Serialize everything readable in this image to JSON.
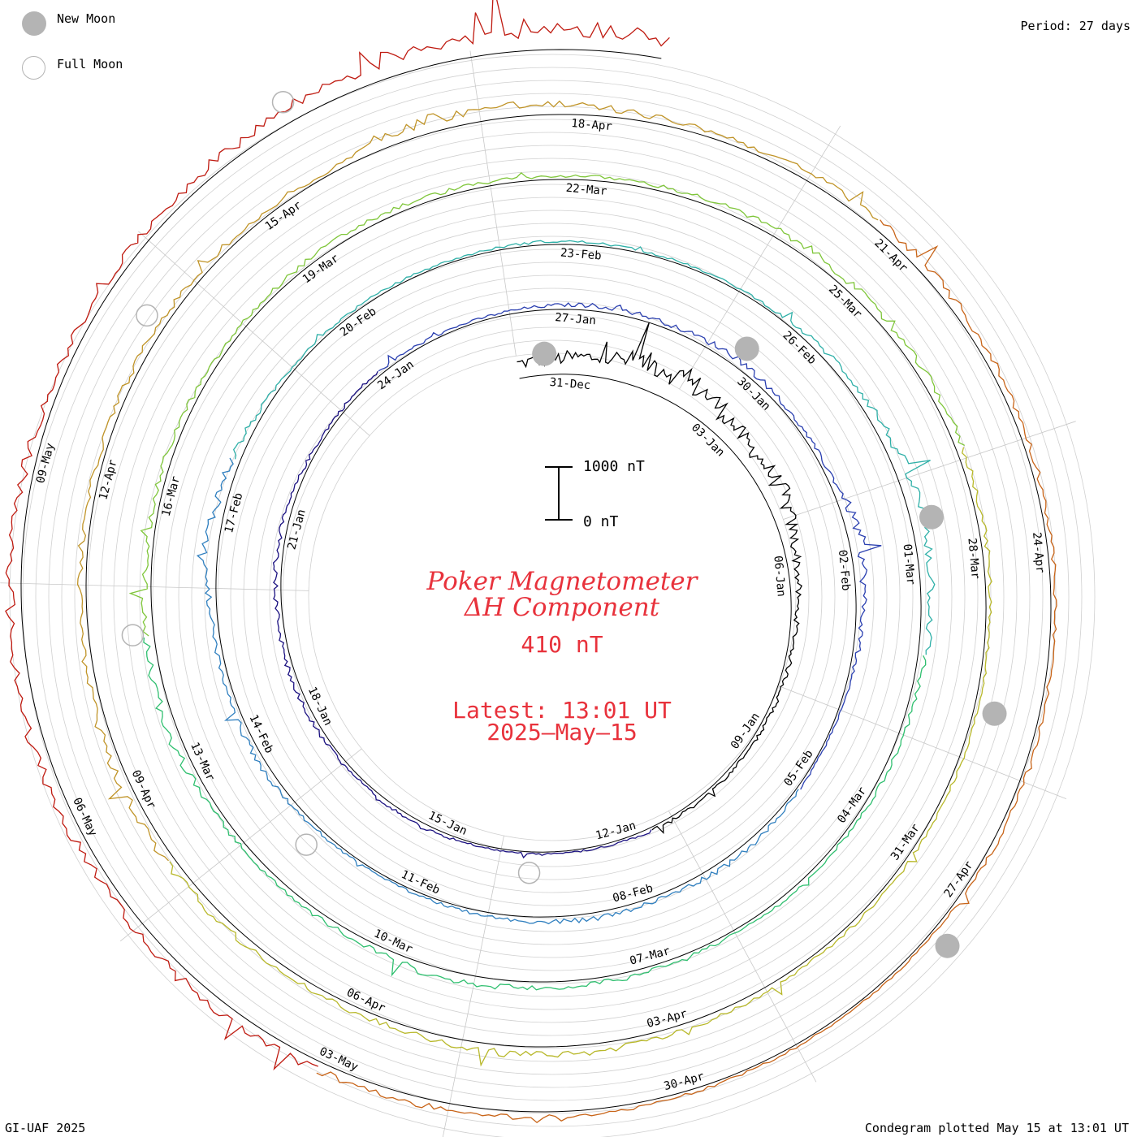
{
  "legend": {
    "new_moon_label": "New Moon",
    "full_moon_label": "Full Moon",
    "new_moon_color": "#b4b4b4",
    "full_moon_color": "#b4b4b4"
  },
  "period_label": "Period: 27 days",
  "footer_left": "GI-UAF 2025",
  "footer_right": "Condegram plotted May 15 at 13:01 UT",
  "center": {
    "title_line1": "Poker Magnetometer",
    "title_line2": "ΔH Component",
    "current_value": "410 nT",
    "latest_time": "Latest: 13:01 UT",
    "latest_date": "2025–May–15",
    "text_color": "#e8323c"
  },
  "scale_bar": {
    "top_label": "1000 nT",
    "bottom_label": "0 nT"
  },
  "chart_data": {
    "type": "line",
    "subtype": "condegram-spiral",
    "period_days": 27,
    "start_date": "2024-12-30",
    "end_date": "2025-05-15T13:01",
    "ylabel": "ΔH (nT)",
    "scale_nT": [
      0,
      1000
    ],
    "date_labels": [
      "31-Dec",
      "03-Jan",
      "06-Jan",
      "09-Jan",
      "12-Jan",
      "15-Jan",
      "18-Jan",
      "21-Jan",
      "24-Jan",
      "27-Jan",
      "30-Jan",
      "02-Feb",
      "05-Feb",
      "08-Feb",
      "11-Feb",
      "14-Feb",
      "17-Feb",
      "20-Feb",
      "23-Feb",
      "26-Feb",
      "01-Mar",
      "04-Mar",
      "07-Mar",
      "10-Mar",
      "13-Mar",
      "16-Mar",
      "19-Mar",
      "22-Mar",
      "25-Mar",
      "28-Mar",
      "31-Mar",
      "03-Apr",
      "06-Apr",
      "09-Apr",
      "12-Apr",
      "15-Apr",
      "18-Apr",
      "21-Apr",
      "24-Apr",
      "27-Apr",
      "30-Apr",
      "03-May",
      "06-May",
      "09-May"
    ],
    "new_moons": [
      "2024-12-30",
      "2025-01-29",
      "2025-02-28",
      "2025-03-29",
      "2025-04-27"
    ],
    "full_moons": [
      "2025-01-13",
      "2025-02-12",
      "2025-03-14",
      "2025-04-13",
      "2025-05-12"
    ],
    "series_colors": [
      "#000000",
      "#1a1080",
      "#2a3fb0",
      "#2f7fbf",
      "#2fb0a8",
      "#2fbf6f",
      "#7fc63a",
      "#b8b82a",
      "#c09428",
      "#c86418",
      "#bf1a10"
    ],
    "daily_dH_nT": [
      {
        "date": "2024-12-30",
        "v": 280
      },
      {
        "date": "2024-12-31",
        "v": 360
      },
      {
        "date": "2025-01-01",
        "v": 520
      },
      {
        "date": "2025-01-02",
        "v": 480
      },
      {
        "date": "2025-01-03",
        "v": 300
      },
      {
        "date": "2025-01-04",
        "v": 360
      },
      {
        "date": "2025-01-05",
        "v": 220
      },
      {
        "date": "2025-01-06",
        "v": 120
      },
      {
        "date": "2025-01-07",
        "v": 90
      },
      {
        "date": "2025-01-08",
        "v": 80
      },
      {
        "date": "2025-01-09",
        "v": 60
      },
      {
        "date": "2025-01-10",
        "v": 70
      },
      {
        "date": "2025-01-11",
        "v": 60
      },
      {
        "date": "2025-01-12",
        "v": 40
      },
      {
        "date": "2025-01-13",
        "v": 30
      },
      {
        "date": "2025-01-14",
        "v": 40
      },
      {
        "date": "2025-01-15",
        "v": 90
      },
      {
        "date": "2025-01-16",
        "v": 60
      },
      {
        "date": "2025-01-17",
        "v": 80
      },
      {
        "date": "2025-01-18",
        "v": 110
      },
      {
        "date": "2025-01-19",
        "v": 90
      },
      {
        "date": "2025-01-20",
        "v": 120
      },
      {
        "date": "2025-01-21",
        "v": 80
      },
      {
        "date": "2025-01-22",
        "v": 60
      },
      {
        "date": "2025-01-23",
        "v": 70
      },
      {
        "date": "2025-01-24",
        "v": 60
      },
      {
        "date": "2025-01-25",
        "v": 50
      },
      {
        "date": "2025-01-26",
        "v": 70
      },
      {
        "date": "2025-01-27",
        "v": 110
      },
      {
        "date": "2025-01-28",
        "v": 90
      },
      {
        "date": "2025-01-29",
        "v": 150
      },
      {
        "date": "2025-01-30",
        "v": 70
      },
      {
        "date": "2025-01-31",
        "v": 80
      },
      {
        "date": "2025-02-01",
        "v": 230
      },
      {
        "date": "2025-02-02",
        "v": 140
      },
      {
        "date": "2025-02-03",
        "v": 60
      },
      {
        "date": "2025-02-04",
        "v": 40
      },
      {
        "date": "2025-02-05",
        "v": 60
      },
      {
        "date": "2025-02-06",
        "v": 130
      },
      {
        "date": "2025-02-07",
        "v": 70
      },
      {
        "date": "2025-02-08",
        "v": 110
      },
      {
        "date": "2025-02-09",
        "v": 90
      },
      {
        "date": "2025-02-10",
        "v": 60
      },
      {
        "date": "2025-02-11",
        "v": 40
      },
      {
        "date": "2025-02-12",
        "v": 60
      },
      {
        "date": "2025-02-13",
        "v": 120
      },
      {
        "date": "2025-02-14",
        "v": 110
      },
      {
        "date": "2025-02-15",
        "v": 90
      },
      {
        "date": "2025-02-16",
        "v": 230
      },
      {
        "date": "2025-02-17",
        "v": 170
      },
      {
        "date": "2025-02-18",
        "v": 80
      },
      {
        "date": "2025-02-19",
        "v": 60
      },
      {
        "date": "2025-02-20",
        "v": 50
      },
      {
        "date": "2025-02-21",
        "v": 40
      },
      {
        "date": "2025-02-22",
        "v": 60
      },
      {
        "date": "2025-02-23",
        "v": 50
      },
      {
        "date": "2025-02-24",
        "v": 40
      },
      {
        "date": "2025-02-25",
        "v": 60
      },
      {
        "date": "2025-02-26",
        "v": 140
      },
      {
        "date": "2025-02-27",
        "v": 180
      },
      {
        "date": "2025-02-28",
        "v": 260
      },
      {
        "date": "2025-03-01",
        "v": 200
      },
      {
        "date": "2025-03-02",
        "v": 100
      },
      {
        "date": "2025-03-03",
        "v": 80
      },
      {
        "date": "2025-03-04",
        "v": 60
      },
      {
        "date": "2025-03-05",
        "v": 70
      },
      {
        "date": "2025-03-06",
        "v": 60
      },
      {
        "date": "2025-03-07",
        "v": 80
      },
      {
        "date": "2025-03-08",
        "v": 120
      },
      {
        "date": "2025-03-09",
        "v": 160
      },
      {
        "date": "2025-03-10",
        "v": 110
      },
      {
        "date": "2025-03-11",
        "v": 80
      },
      {
        "date": "2025-03-12",
        "v": 110
      },
      {
        "date": "2025-03-13",
        "v": 190
      },
      {
        "date": "2025-03-14",
        "v": 150
      },
      {
        "date": "2025-03-15",
        "v": 100
      },
      {
        "date": "2025-03-16",
        "v": 120
      },
      {
        "date": "2025-03-17",
        "v": 80
      },
      {
        "date": "2025-03-18",
        "v": 90
      },
      {
        "date": "2025-03-19",
        "v": 110
      },
      {
        "date": "2025-03-20",
        "v": 90
      },
      {
        "date": "2025-03-21",
        "v": 60
      },
      {
        "date": "2025-03-22",
        "v": 80
      },
      {
        "date": "2025-03-23",
        "v": 110
      },
      {
        "date": "2025-03-24",
        "v": 170
      },
      {
        "date": "2025-03-25",
        "v": 120
      },
      {
        "date": "2025-03-26",
        "v": 140
      },
      {
        "date": "2025-03-27",
        "v": 110
      },
      {
        "date": "2025-03-28",
        "v": 80
      },
      {
        "date": "2025-03-29",
        "v": 70
      },
      {
        "date": "2025-03-30",
        "v": 60
      },
      {
        "date": "2025-03-31",
        "v": 80
      },
      {
        "date": "2025-04-01",
        "v": 60
      },
      {
        "date": "2025-04-02",
        "v": 110
      },
      {
        "date": "2025-04-03",
        "v": 140
      },
      {
        "date": "2025-04-04",
        "v": 150
      },
      {
        "date": "2025-04-05",
        "v": 100
      },
      {
        "date": "2025-04-06",
        "v": 110
      },
      {
        "date": "2025-04-07",
        "v": 130
      },
      {
        "date": "2025-04-08",
        "v": 160
      },
      {
        "date": "2025-04-09",
        "v": 170
      },
      {
        "date": "2025-04-10",
        "v": 120
      },
      {
        "date": "2025-04-11",
        "v": 100
      },
      {
        "date": "2025-04-12",
        "v": 110
      },
      {
        "date": "2025-04-13",
        "v": 120
      },
      {
        "date": "2025-04-14",
        "v": 80
      },
      {
        "date": "2025-04-15",
        "v": 60
      },
      {
        "date": "2025-04-16",
        "v": 260
      },
      {
        "date": "2025-04-17",
        "v": 200
      },
      {
        "date": "2025-04-18",
        "v": 120
      },
      {
        "date": "2025-04-19",
        "v": 110
      },
      {
        "date": "2025-04-20",
        "v": 180
      },
      {
        "date": "2025-04-21",
        "v": 150
      },
      {
        "date": "2025-04-22",
        "v": 120
      },
      {
        "date": "2025-04-23",
        "v": 100
      },
      {
        "date": "2025-04-24",
        "v": 80
      },
      {
        "date": "2025-04-25",
        "v": 70
      },
      {
        "date": "2025-04-26",
        "v": 80
      },
      {
        "date": "2025-04-27",
        "v": 60
      },
      {
        "date": "2025-04-28",
        "v": 40
      },
      {
        "date": "2025-04-29",
        "v": 50
      },
      {
        "date": "2025-04-30",
        "v": 80
      },
      {
        "date": "2025-05-01",
        "v": 110
      },
      {
        "date": "2025-05-02",
        "v": 140
      },
      {
        "date": "2025-05-03",
        "v": 180
      },
      {
        "date": "2025-05-04",
        "v": 200
      },
      {
        "date": "2025-05-05",
        "v": 160
      },
      {
        "date": "2025-05-06",
        "v": 240
      },
      {
        "date": "2025-05-07",
        "v": 220
      },
      {
        "date": "2025-05-08",
        "v": 200
      },
      {
        "date": "2025-05-09",
        "v": 160
      },
      {
        "date": "2025-05-10",
        "v": 140
      },
      {
        "date": "2025-05-11",
        "v": 180
      },
      {
        "date": "2025-05-12",
        "v": 260
      },
      {
        "date": "2025-05-13",
        "v": 380
      },
      {
        "date": "2025-05-14",
        "v": 420
      },
      {
        "date": "2025-05-15",
        "v": 410
      }
    ]
  }
}
